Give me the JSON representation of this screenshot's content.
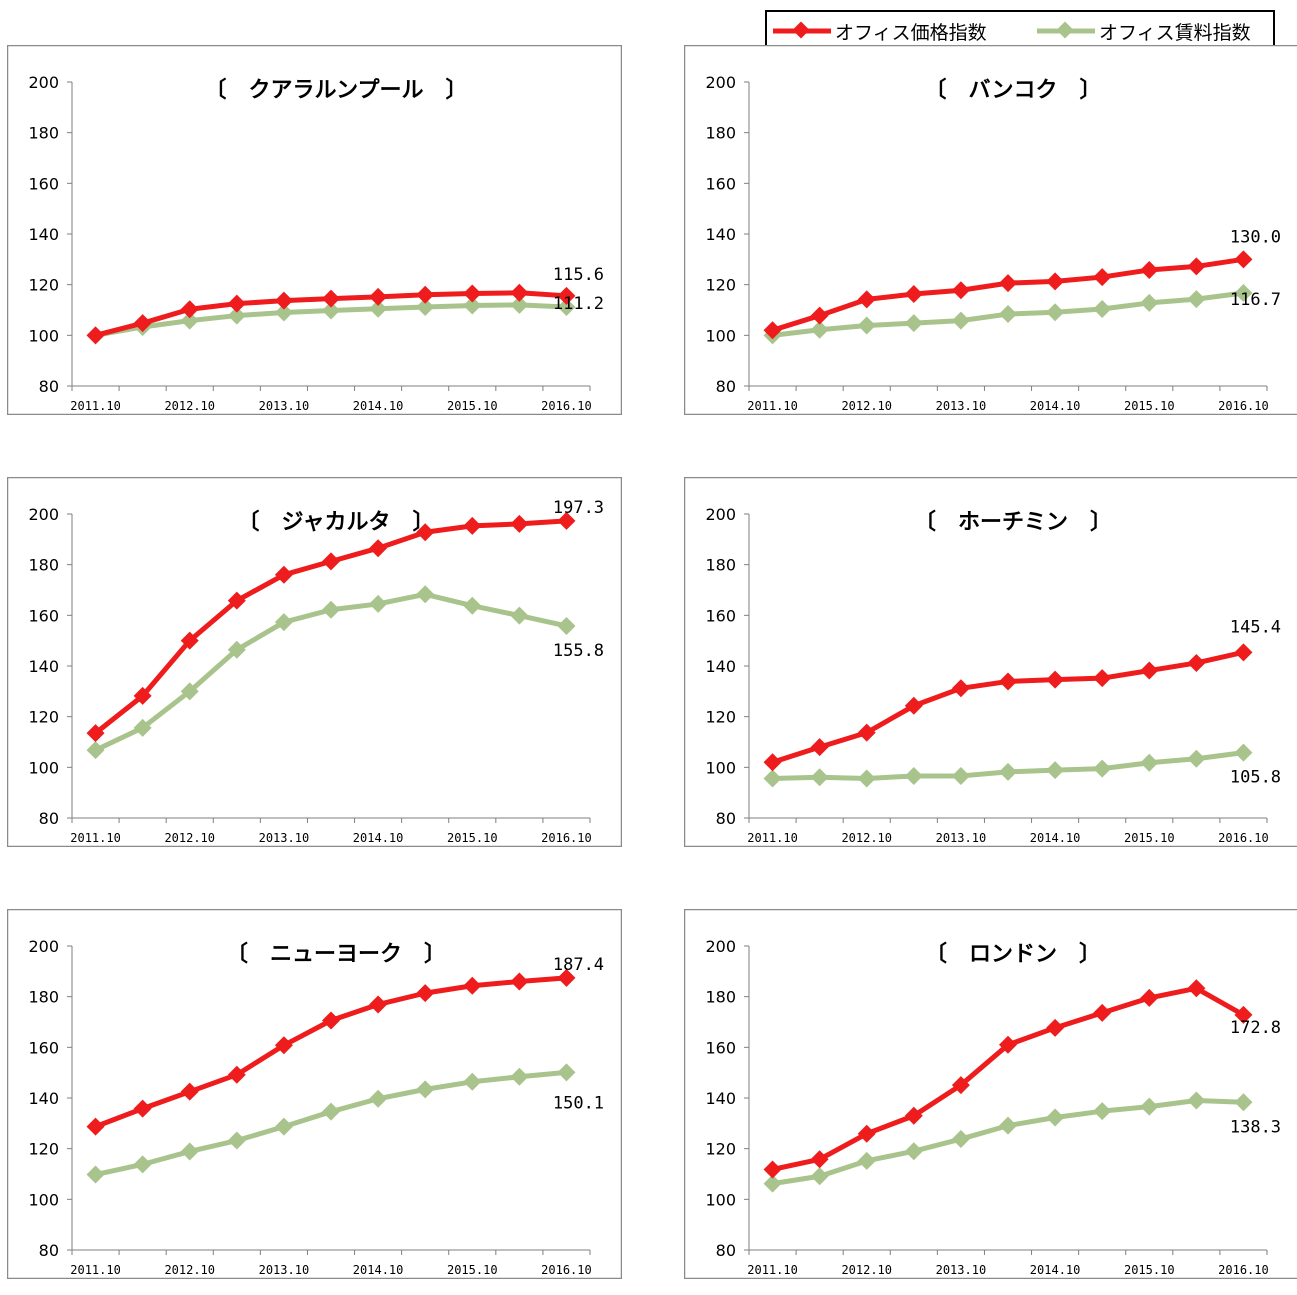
{
  "legend": {
    "price_label": "オフィス価格指数",
    "rent_label": "オフィス賃料指数"
  },
  "colors": {
    "price": "#ee1c1c",
    "rent": "#a8c48c"
  },
  "chart_data": [
    {
      "type": "line",
      "title": "〔　クアラルンプール　〕",
      "ylim": [
        80,
        200
      ],
      "yticks": [
        80,
        100,
        120,
        140,
        160,
        180,
        200
      ],
      "xticks": [
        "2011.10",
        "2012.10",
        "2013.10",
        "2014.10",
        "2015.10",
        "2016.10"
      ],
      "series": [
        {
          "name": "オフィス価格指数",
          "values": [
            100,
            104.8,
            110.3,
            112.5,
            113.7,
            114.5,
            115.2,
            116.0,
            116.5,
            116.8,
            115.6
          ],
          "end_label": "115.6"
        },
        {
          "name": "オフィス賃料指数",
          "values": [
            100,
            103.3,
            105.8,
            107.8,
            109.0,
            109.8,
            110.5,
            111.2,
            111.8,
            112.0,
            111.2
          ],
          "end_label": "111.2"
        }
      ]
    },
    {
      "type": "line",
      "title": "〔　バンコク　〕",
      "ylim": [
        80,
        200
      ],
      "yticks": [
        80,
        100,
        120,
        140,
        160,
        180,
        200
      ],
      "xticks": [
        "2011.10",
        "2012.10",
        "2013.10",
        "2014.10",
        "2015.10",
        "2016.10"
      ],
      "series": [
        {
          "name": "オフィス価格指数",
          "values": [
            102.0,
            107.8,
            114.2,
            116.3,
            117.8,
            120.6,
            121.3,
            123.0,
            125.8,
            127.2,
            130.0
          ],
          "end_label": "130.0"
        },
        {
          "name": "オフィス賃料指数",
          "values": [
            100,
            102.2,
            103.9,
            104.8,
            105.8,
            108.4,
            109.1,
            110.4,
            112.8,
            114.3,
            116.7
          ],
          "end_label": "116.7"
        }
      ]
    },
    {
      "type": "line",
      "title": "〔　ジャカルタ　〕",
      "ylim": [
        80,
        200
      ],
      "yticks": [
        80,
        100,
        120,
        140,
        160,
        180,
        200
      ],
      "xticks": [
        "2011.10",
        "2012.10",
        "2013.10",
        "2014.10",
        "2015.10",
        "2016.10"
      ],
      "series": [
        {
          "name": "オフィス価格指数",
          "values": [
            113.5,
            128.2,
            150.0,
            165.8,
            176.0,
            181.3,
            186.5,
            192.8,
            195.3,
            196.1,
            197.3
          ],
          "end_label": "197.3"
        },
        {
          "name": "オフィス賃料指数",
          "values": [
            106.8,
            115.6,
            130.0,
            146.4,
            157.3,
            162.2,
            164.5,
            168.3,
            163.8,
            159.9,
            155.8
          ],
          "end_label": "155.8"
        }
      ]
    },
    {
      "type": "line",
      "title": "〔　ホーチミン　〕",
      "ylim": [
        80,
        200
      ],
      "yticks": [
        80,
        100,
        120,
        140,
        160,
        180,
        200
      ],
      "xticks": [
        "2011.10",
        "2012.10",
        "2013.10",
        "2014.10",
        "2015.10",
        "2016.10"
      ],
      "series": [
        {
          "name": "オフィス価格指数",
          "values": [
            102.0,
            108.0,
            113.7,
            124.3,
            131.2,
            133.9,
            134.6,
            135.2,
            138.2,
            141.2,
            145.4
          ],
          "end_label": "145.4"
        },
        {
          "name": "オフィス賃料指数",
          "values": [
            95.6,
            96.1,
            95.6,
            96.6,
            96.6,
            98.2,
            98.9,
            99.5,
            101.8,
            103.4,
            105.8
          ],
          "end_label": "105.8"
        }
      ]
    },
    {
      "type": "line",
      "title": "〔　ニューヨーク　〕",
      "ylim": [
        80,
        200
      ],
      "yticks": [
        80,
        100,
        120,
        140,
        160,
        180,
        200
      ],
      "xticks": [
        "2011.10",
        "2012.10",
        "2013.10",
        "2014.10",
        "2015.10",
        "2016.10"
      ],
      "series": [
        {
          "name": "オフィス価格指数",
          "values": [
            128.7,
            135.8,
            142.5,
            149.2,
            160.8,
            170.6,
            176.9,
            181.4,
            184.3,
            186.0,
            187.4
          ],
          "end_label": "187.4"
        },
        {
          "name": "オフィス賃料指数",
          "values": [
            109.8,
            113.8,
            118.9,
            123.2,
            128.7,
            134.6,
            139.7,
            143.4,
            146.4,
            148.4,
            150.1
          ],
          "end_label": "150.1"
        }
      ]
    },
    {
      "type": "line",
      "title": "〔　ロンドン　〕",
      "ylim": [
        80,
        200
      ],
      "yticks": [
        80,
        100,
        120,
        140,
        160,
        180,
        200
      ],
      "xticks": [
        "2011.10",
        "2012.10",
        "2013.10",
        "2014.10",
        "2015.10",
        "2016.10"
      ],
      "series": [
        {
          "name": "オフィス価格指数",
          "values": [
            111.8,
            115.8,
            125.9,
            133.0,
            145.1,
            161.0,
            167.7,
            173.6,
            179.5,
            183.3,
            172.8
          ],
          "end_label": "172.8"
        },
        {
          "name": "オフィス賃料指数",
          "values": [
            106.2,
            109.1,
            115.2,
            119.0,
            123.8,
            129.1,
            132.3,
            134.8,
            136.6,
            139.0,
            138.3
          ],
          "end_label": "138.3"
        }
      ]
    }
  ]
}
